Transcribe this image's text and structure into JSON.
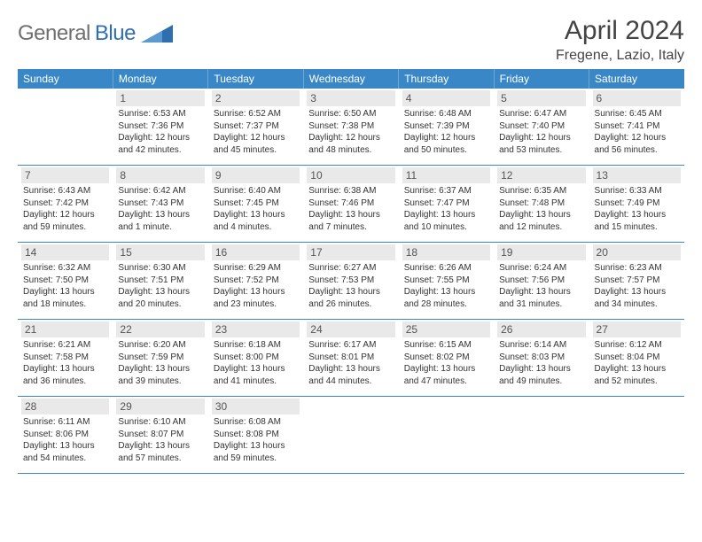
{
  "logo": {
    "textGray": "General",
    "textBlue": "Blue"
  },
  "title": "April 2024",
  "subtitle": "Fregene, Lazio, Italy",
  "colors": {
    "header_bg": "#3a87c7",
    "header_text": "#ffffff",
    "daynum_bg": "#e9e9e9",
    "row_border": "#3a87c7",
    "logo_gray": "#6f6f6f",
    "logo_blue": "#2f6fb0"
  },
  "weekdays": [
    "Sunday",
    "Monday",
    "Tuesday",
    "Wednesday",
    "Thursday",
    "Friday",
    "Saturday"
  ],
  "weeks": [
    [
      null,
      {
        "day": "1",
        "sunrise": "Sunrise: 6:53 AM",
        "sunset": "Sunset: 7:36 PM",
        "daylight": "Daylight: 12 hours and 42 minutes."
      },
      {
        "day": "2",
        "sunrise": "Sunrise: 6:52 AM",
        "sunset": "Sunset: 7:37 PM",
        "daylight": "Daylight: 12 hours and 45 minutes."
      },
      {
        "day": "3",
        "sunrise": "Sunrise: 6:50 AM",
        "sunset": "Sunset: 7:38 PM",
        "daylight": "Daylight: 12 hours and 48 minutes."
      },
      {
        "day": "4",
        "sunrise": "Sunrise: 6:48 AM",
        "sunset": "Sunset: 7:39 PM",
        "daylight": "Daylight: 12 hours and 50 minutes."
      },
      {
        "day": "5",
        "sunrise": "Sunrise: 6:47 AM",
        "sunset": "Sunset: 7:40 PM",
        "daylight": "Daylight: 12 hours and 53 minutes."
      },
      {
        "day": "6",
        "sunrise": "Sunrise: 6:45 AM",
        "sunset": "Sunset: 7:41 PM",
        "daylight": "Daylight: 12 hours and 56 minutes."
      }
    ],
    [
      {
        "day": "7",
        "sunrise": "Sunrise: 6:43 AM",
        "sunset": "Sunset: 7:42 PM",
        "daylight": "Daylight: 12 hours and 59 minutes."
      },
      {
        "day": "8",
        "sunrise": "Sunrise: 6:42 AM",
        "sunset": "Sunset: 7:43 PM",
        "daylight": "Daylight: 13 hours and 1 minute."
      },
      {
        "day": "9",
        "sunrise": "Sunrise: 6:40 AM",
        "sunset": "Sunset: 7:45 PM",
        "daylight": "Daylight: 13 hours and 4 minutes."
      },
      {
        "day": "10",
        "sunrise": "Sunrise: 6:38 AM",
        "sunset": "Sunset: 7:46 PM",
        "daylight": "Daylight: 13 hours and 7 minutes."
      },
      {
        "day": "11",
        "sunrise": "Sunrise: 6:37 AM",
        "sunset": "Sunset: 7:47 PM",
        "daylight": "Daylight: 13 hours and 10 minutes."
      },
      {
        "day": "12",
        "sunrise": "Sunrise: 6:35 AM",
        "sunset": "Sunset: 7:48 PM",
        "daylight": "Daylight: 13 hours and 12 minutes."
      },
      {
        "day": "13",
        "sunrise": "Sunrise: 6:33 AM",
        "sunset": "Sunset: 7:49 PM",
        "daylight": "Daylight: 13 hours and 15 minutes."
      }
    ],
    [
      {
        "day": "14",
        "sunrise": "Sunrise: 6:32 AM",
        "sunset": "Sunset: 7:50 PM",
        "daylight": "Daylight: 13 hours and 18 minutes."
      },
      {
        "day": "15",
        "sunrise": "Sunrise: 6:30 AM",
        "sunset": "Sunset: 7:51 PM",
        "daylight": "Daylight: 13 hours and 20 minutes."
      },
      {
        "day": "16",
        "sunrise": "Sunrise: 6:29 AM",
        "sunset": "Sunset: 7:52 PM",
        "daylight": "Daylight: 13 hours and 23 minutes."
      },
      {
        "day": "17",
        "sunrise": "Sunrise: 6:27 AM",
        "sunset": "Sunset: 7:53 PM",
        "daylight": "Daylight: 13 hours and 26 minutes."
      },
      {
        "day": "18",
        "sunrise": "Sunrise: 6:26 AM",
        "sunset": "Sunset: 7:55 PM",
        "daylight": "Daylight: 13 hours and 28 minutes."
      },
      {
        "day": "19",
        "sunrise": "Sunrise: 6:24 AM",
        "sunset": "Sunset: 7:56 PM",
        "daylight": "Daylight: 13 hours and 31 minutes."
      },
      {
        "day": "20",
        "sunrise": "Sunrise: 6:23 AM",
        "sunset": "Sunset: 7:57 PM",
        "daylight": "Daylight: 13 hours and 34 minutes."
      }
    ],
    [
      {
        "day": "21",
        "sunrise": "Sunrise: 6:21 AM",
        "sunset": "Sunset: 7:58 PM",
        "daylight": "Daylight: 13 hours and 36 minutes."
      },
      {
        "day": "22",
        "sunrise": "Sunrise: 6:20 AM",
        "sunset": "Sunset: 7:59 PM",
        "daylight": "Daylight: 13 hours and 39 minutes."
      },
      {
        "day": "23",
        "sunrise": "Sunrise: 6:18 AM",
        "sunset": "Sunset: 8:00 PM",
        "daylight": "Daylight: 13 hours and 41 minutes."
      },
      {
        "day": "24",
        "sunrise": "Sunrise: 6:17 AM",
        "sunset": "Sunset: 8:01 PM",
        "daylight": "Daylight: 13 hours and 44 minutes."
      },
      {
        "day": "25",
        "sunrise": "Sunrise: 6:15 AM",
        "sunset": "Sunset: 8:02 PM",
        "daylight": "Daylight: 13 hours and 47 minutes."
      },
      {
        "day": "26",
        "sunrise": "Sunrise: 6:14 AM",
        "sunset": "Sunset: 8:03 PM",
        "daylight": "Daylight: 13 hours and 49 minutes."
      },
      {
        "day": "27",
        "sunrise": "Sunrise: 6:12 AM",
        "sunset": "Sunset: 8:04 PM",
        "daylight": "Daylight: 13 hours and 52 minutes."
      }
    ],
    [
      {
        "day": "28",
        "sunrise": "Sunrise: 6:11 AM",
        "sunset": "Sunset: 8:06 PM",
        "daylight": "Daylight: 13 hours and 54 minutes."
      },
      {
        "day": "29",
        "sunrise": "Sunrise: 6:10 AM",
        "sunset": "Sunset: 8:07 PM",
        "daylight": "Daylight: 13 hours and 57 minutes."
      },
      {
        "day": "30",
        "sunrise": "Sunrise: 6:08 AM",
        "sunset": "Sunset: 8:08 PM",
        "daylight": "Daylight: 13 hours and 59 minutes."
      },
      null,
      null,
      null,
      null
    ]
  ]
}
